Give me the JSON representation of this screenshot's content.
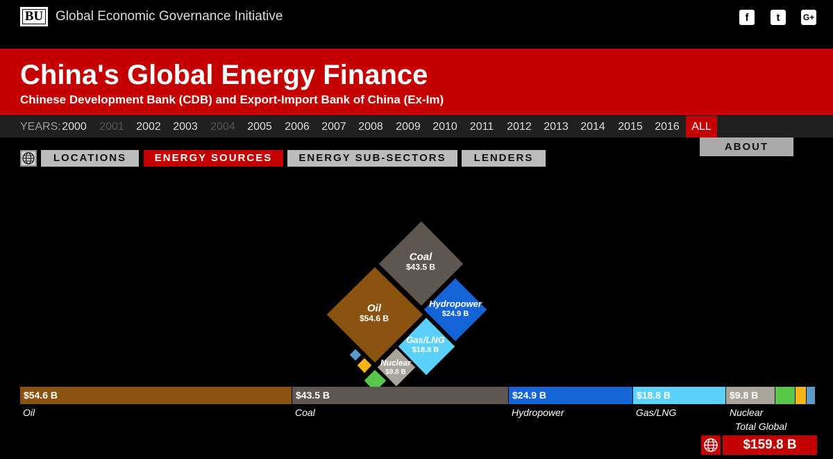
{
  "header": {
    "logo_text": "BU",
    "org_name": "Global Economic Governance Initiative",
    "social": [
      "facebook-icon",
      "twitter-icon",
      "google-plus-icon"
    ],
    "social_glyphs": [
      "f",
      "t",
      "G+"
    ]
  },
  "banner": {
    "title": "China's Global Energy Finance",
    "subtitle": "Chinese Development Bank (CDB) and Export-Import Bank of China (Ex-Im)"
  },
  "years": {
    "label": "YEARS:",
    "items": [
      {
        "label": "2000",
        "state": "enabled"
      },
      {
        "label": "2001",
        "state": "disabled"
      },
      {
        "label": "2002",
        "state": "enabled"
      },
      {
        "label": "2003",
        "state": "enabled"
      },
      {
        "label": "2004",
        "state": "disabled"
      },
      {
        "label": "2005",
        "state": "enabled"
      },
      {
        "label": "2006",
        "state": "enabled"
      },
      {
        "label": "2007",
        "state": "enabled"
      },
      {
        "label": "2008",
        "state": "enabled"
      },
      {
        "label": "2009",
        "state": "enabled"
      },
      {
        "label": "2010",
        "state": "enabled"
      },
      {
        "label": "2011",
        "state": "enabled"
      },
      {
        "label": "2012",
        "state": "enabled"
      },
      {
        "label": "2013",
        "state": "enabled"
      },
      {
        "label": "2014",
        "state": "enabled"
      },
      {
        "label": "2015",
        "state": "enabled"
      },
      {
        "label": "2016",
        "state": "enabled"
      },
      {
        "label": "ALL",
        "state": "active"
      }
    ]
  },
  "tabs": {
    "items": [
      {
        "label": "LOCATIONS",
        "active": false
      },
      {
        "label": "ENERGY SOURCES",
        "active": true
      },
      {
        "label": "ENERGY SUB-SECTORS",
        "active": false
      },
      {
        "label": "LENDERS",
        "active": false
      }
    ],
    "about": "ABOUT"
  },
  "sources": [
    {
      "name": "Oil",
      "value_label": "$54.6 B",
      "value": 54.6,
      "color": "#8a5410"
    },
    {
      "name": "Coal",
      "value_label": "$43.5 B",
      "value": 43.5,
      "color": "#5f5650"
    },
    {
      "name": "Hydropower",
      "value_label": "$24.9 B",
      "value": 24.9,
      "color": "#1565d8"
    },
    {
      "name": "Gas/LNG",
      "value_label": "$18.8 B",
      "value": 18.8,
      "color": "#5ad0fa"
    },
    {
      "name": "Nuclear",
      "value_label": "$9.8 B",
      "value": 9.8,
      "color": "#aaa59b"
    }
  ],
  "minor_colors": [
    "#58c84b",
    "#f5b418",
    "#5b9cc9"
  ],
  "total": {
    "label": "Total Global",
    "value_label": "$159.8 B"
  }
}
